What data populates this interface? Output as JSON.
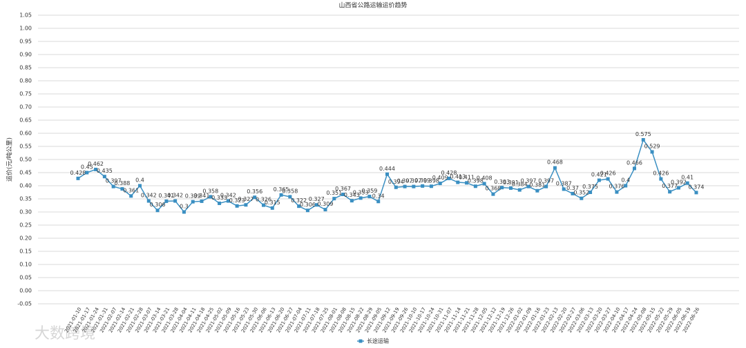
{
  "chart_data": {
    "type": "line",
    "title": "山西省公路运输运价趋势",
    "y_label": "运价(元/吨公里)",
    "watermark": "大数跨境",
    "x": [
      "2021-01-10",
      "2021-01-17",
      "2021-01-24",
      "2021-01-31",
      "2021-02-07",
      "2021-02-14",
      "2021-02-21",
      "2021-02-28",
      "2021-03-07",
      "2021-03-14",
      "2021-03-21",
      "2021-03-28",
      "2021-04-04",
      "2021-04-11",
      "2021-04-18",
      "2021-04-25",
      "2021-05-02",
      "2021-05-09",
      "2021-05-16",
      "2021-05-23",
      "2021-05-30",
      "2021-06-06",
      "2021-06-13",
      "2021-06-20",
      "2021-06-27",
      "2021-07-04",
      "2021-07-11",
      "2021-07-18",
      "2021-07-25",
      "2021-08-01",
      "2021-08-08",
      "2021-08-15",
      "2021-08-22",
      "2021-08-29",
      "2021-09-05",
      "2021-09-12",
      "2021-09-19",
      "2021-09-26",
      "2021-10-10",
      "2021-10-17",
      "2021-10-24",
      "2021-10-31",
      "2021-11-07",
      "2021-11-14",
      "2021-11-21",
      "2021-11-28",
      "2021-12-05",
      "2021-12-12",
      "2021-12-19",
      "2021-12-26",
      "2022-01-02",
      "2022-01-09",
      "2022-01-16",
      "2022-01-23",
      "2022-02-13",
      "2022-02-20",
      "2022-02-27",
      "2022-03-06",
      "2022-03-13",
      "2022-03-20",
      "2022-03-27",
      "2022-04-10",
      "2022-04-17",
      "2022-04-24",
      "2022-05-08",
      "2022-05-15",
      "2022-05-22",
      "2022-05-29",
      "2022-06-05",
      "2022-06-19",
      "2022-06-26"
    ],
    "series": [
      {
        "name": "长途运输",
        "color": "#3a8fc2",
        "values": [
          0.428,
          0.45,
          0.462,
          0.435,
          0.397,
          0.388,
          0.361,
          0.4,
          0.342,
          0.306,
          0.341,
          0.342,
          0.3,
          0.339,
          0.341,
          0.358,
          0.333,
          0.342,
          0.323,
          0.327,
          0.356,
          0.326,
          0.315,
          0.365,
          0.358,
          0.322,
          0.306,
          0.327,
          0.309,
          0.351,
          0.367,
          0.343,
          0.353,
          0.359,
          0.34,
          0.444,
          0.394,
          0.397,
          0.397,
          0.399,
          0.398,
          0.409,
          0.428,
          0.413,
          0.411,
          0.398,
          0.408,
          0.368,
          0.393,
          0.391,
          0.384,
          0.397,
          0.381,
          0.397,
          0.468,
          0.387,
          0.37,
          0.352,
          0.375,
          0.421,
          0.426,
          0.376,
          0.4,
          0.466,
          0.575,
          0.529,
          0.426,
          0.377,
          0.392,
          0.41,
          0.374
        ]
      }
    ],
    "ylim": [
      -0.05,
      1.05
    ],
    "yticks": [
      {
        "value": -0.05,
        "label": "-0.05"
      },
      {
        "value": 0,
        "label": "0.00"
      },
      {
        "value": 0.05,
        "label": "0.05"
      },
      {
        "value": 0.1,
        "label": "0.10"
      },
      {
        "value": 0.15,
        "label": "0.15"
      },
      {
        "value": 0.2,
        "label": "0.20"
      },
      {
        "value": 0.25,
        "label": "0.25"
      },
      {
        "value": 0.3,
        "label": "0.30"
      },
      {
        "value": 0.35,
        "label": "0.35"
      },
      {
        "value": 0.4,
        "label": "0.40"
      },
      {
        "value": 0.45,
        "label": "0.45"
      },
      {
        "value": 0.5,
        "label": "0.50"
      },
      {
        "value": 0.55,
        "label": "0.55"
      },
      {
        "value": 0.6,
        "label": "0.60"
      },
      {
        "value": 0.65,
        "label": "0.65"
      },
      {
        "value": 0.7,
        "label": "0.70"
      },
      {
        "value": 0.75,
        "label": "0.75"
      },
      {
        "value": 0.8,
        "label": "0.80"
      },
      {
        "value": 0.85,
        "label": "0.85"
      },
      {
        "value": 0.9,
        "label": "0.90"
      },
      {
        "value": 0.95,
        "label": "0.95"
      },
      {
        "value": 1,
        "label": "1.00"
      },
      {
        "value": 1.05,
        "label": "1.05"
      }
    ],
    "grid": true,
    "legend": "bottom"
  }
}
